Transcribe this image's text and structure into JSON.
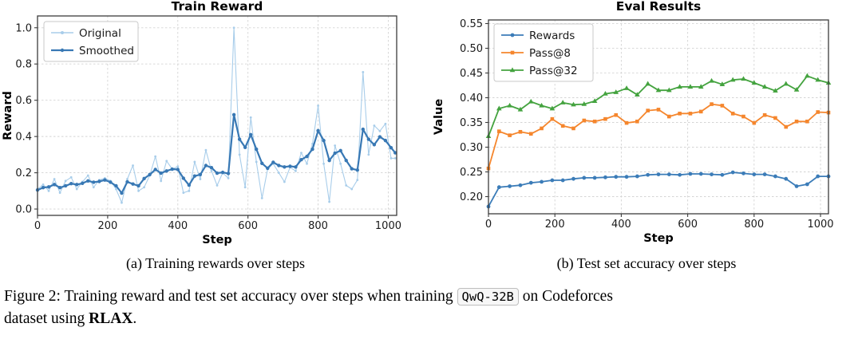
{
  "captions": {
    "sub_a": "(a) Training rewards over steps",
    "sub_b": "(b) Test set accuracy over steps",
    "figure_prefix": "Figure 2:",
    "figure_text_1": "Training reward and test set accuracy over steps when training",
    "figure_code": "QwQ-32B",
    "figure_text_2": "on Codeforces",
    "figure_line2": "dataset using ",
    "figure_bold": "RLAX",
    "figure_suffix": "."
  },
  "colors": {
    "original_line": "#a8cdea",
    "smoothed_line": "#3878b4",
    "rewards_line": "#3b7cb8",
    "pass8_line": "#f5862d",
    "pass32_line": "#44a33f",
    "grid": "#d4d4d4",
    "spine": "#3c3c3c"
  },
  "chart_data": [
    {
      "type": "line",
      "title": "Train Reward",
      "xlabel": "Step",
      "ylabel": "Reward",
      "xlim": [
        0,
        1024
      ],
      "ylim": [
        -0.035,
        1.065
      ],
      "xticks": [
        0,
        200,
        400,
        600,
        800,
        1000
      ],
      "yticks": [
        0.0,
        0.2,
        0.4,
        0.6,
        0.8,
        1.0
      ],
      "ytick_decimals": 1,
      "grid": true,
      "legend_position": "upper-left",
      "x": [
        0,
        16,
        32,
        48,
        64,
        80,
        96,
        112,
        128,
        144,
        160,
        176,
        192,
        208,
        224,
        240,
        256,
        272,
        288,
        304,
        320,
        336,
        352,
        368,
        384,
        400,
        416,
        432,
        448,
        464,
        480,
        496,
        512,
        528,
        544,
        560,
        576,
        592,
        608,
        624,
        640,
        656,
        672,
        688,
        704,
        720,
        736,
        752,
        768,
        784,
        800,
        816,
        832,
        848,
        864,
        880,
        896,
        912,
        928,
        944,
        960,
        976,
        992,
        1008,
        1020
      ],
      "series": [
        {
          "name": "Original",
          "color": "#a8cdea",
          "marker": "circle",
          "marker_size": 1.4,
          "line_width": 1.1,
          "values": [
            0.11,
            0.135,
            0.1,
            0.165,
            0.09,
            0.155,
            0.175,
            0.11,
            0.15,
            0.185,
            0.12,
            0.16,
            0.17,
            0.155,
            0.11,
            0.035,
            0.165,
            0.24,
            0.1,
            0.12,
            0.185,
            0.29,
            0.155,
            0.265,
            0.22,
            0.235,
            0.09,
            0.1,
            0.26,
            0.165,
            0.325,
            0.21,
            0.13,
            0.2,
            0.17,
            1.0,
            0.3,
            0.12,
            0.505,
            0.26,
            0.06,
            0.22,
            0.25,
            0.2,
            0.15,
            0.23,
            0.21,
            0.31,
            0.25,
            0.36,
            0.57,
            0.25,
            0.04,
            0.35,
            0.25,
            0.13,
            0.11,
            0.16,
            0.755,
            0.3,
            0.46,
            0.43,
            0.47,
            0.28,
            0.28
          ]
        },
        {
          "name": "Smoothed",
          "color": "#3878b4",
          "marker": "circle",
          "marker_size": 2.2,
          "line_width": 2.2,
          "values": [
            0.105,
            0.118,
            0.122,
            0.135,
            0.118,
            0.128,
            0.14,
            0.135,
            0.142,
            0.155,
            0.148,
            0.152,
            0.16,
            0.148,
            0.128,
            0.088,
            0.15,
            0.138,
            0.128,
            0.168,
            0.19,
            0.218,
            0.198,
            0.21,
            0.22,
            0.218,
            0.17,
            0.132,
            0.182,
            0.19,
            0.24,
            0.228,
            0.198,
            0.202,
            0.196,
            0.52,
            0.385,
            0.34,
            0.41,
            0.33,
            0.252,
            0.225,
            0.258,
            0.24,
            0.232,
            0.236,
            0.232,
            0.272,
            0.29,
            0.33,
            0.432,
            0.378,
            0.268,
            0.308,
            0.322,
            0.268,
            0.222,
            0.215,
            0.44,
            0.385,
            0.355,
            0.398,
            0.378,
            0.338,
            0.31
          ]
        }
      ]
    },
    {
      "type": "line",
      "title": "Eval Results",
      "xlabel": "Step",
      "ylabel": "Value",
      "xlim": [
        0,
        1024
      ],
      "ylim": [
        0.1653,
        0.5573
      ],
      "xticks": [
        0,
        200,
        400,
        600,
        800,
        1000
      ],
      "yticks": [
        0.2,
        0.25,
        0.3,
        0.35,
        0.4,
        0.45,
        0.5,
        0.55
      ],
      "ytick_decimals": 2,
      "grid": true,
      "legend_position": "upper-left",
      "x": [
        0,
        32,
        64,
        96,
        128,
        160,
        192,
        224,
        256,
        288,
        320,
        352,
        384,
        416,
        448,
        480,
        512,
        544,
        576,
        608,
        640,
        672,
        704,
        736,
        768,
        800,
        832,
        864,
        896,
        928,
        960,
        992,
        1024
      ],
      "series": [
        {
          "name": "Rewards",
          "color": "#3b7cb8",
          "marker": "circle",
          "marker_size": 2.4,
          "line_width": 1.8,
          "values": [
            0.18,
            0.219,
            0.221,
            0.223,
            0.228,
            0.23,
            0.233,
            0.233,
            0.236,
            0.238,
            0.238,
            0.239,
            0.24,
            0.24,
            0.241,
            0.244,
            0.245,
            0.245,
            0.244,
            0.246,
            0.246,
            0.245,
            0.244,
            0.249,
            0.247,
            0.245,
            0.245,
            0.241,
            0.236,
            0.221,
            0.225,
            0.241,
            0.241
          ]
        },
        {
          "name": "Pass@8",
          "color": "#f5862d",
          "marker": "square",
          "marker_size": 2.3,
          "line_width": 1.8,
          "values": [
            0.257,
            0.332,
            0.324,
            0.331,
            0.327,
            0.338,
            0.357,
            0.343,
            0.338,
            0.354,
            0.352,
            0.357,
            0.365,
            0.349,
            0.352,
            0.374,
            0.376,
            0.362,
            0.368,
            0.368,
            0.372,
            0.387,
            0.384,
            0.368,
            0.362,
            0.349,
            0.365,
            0.359,
            0.341,
            0.352,
            0.352,
            0.371,
            0.37
          ]
        },
        {
          "name": "Pass@32",
          "color": "#44a33f",
          "marker": "triangle",
          "marker_size": 2.8,
          "line_width": 1.8,
          "values": [
            0.322,
            0.378,
            0.384,
            0.376,
            0.392,
            0.384,
            0.378,
            0.39,
            0.386,
            0.387,
            0.393,
            0.408,
            0.411,
            0.419,
            0.406,
            0.428,
            0.415,
            0.415,
            0.422,
            0.422,
            0.422,
            0.434,
            0.427,
            0.436,
            0.438,
            0.43,
            0.422,
            0.414,
            0.428,
            0.416,
            0.444,
            0.436,
            0.43
          ]
        }
      ]
    }
  ]
}
